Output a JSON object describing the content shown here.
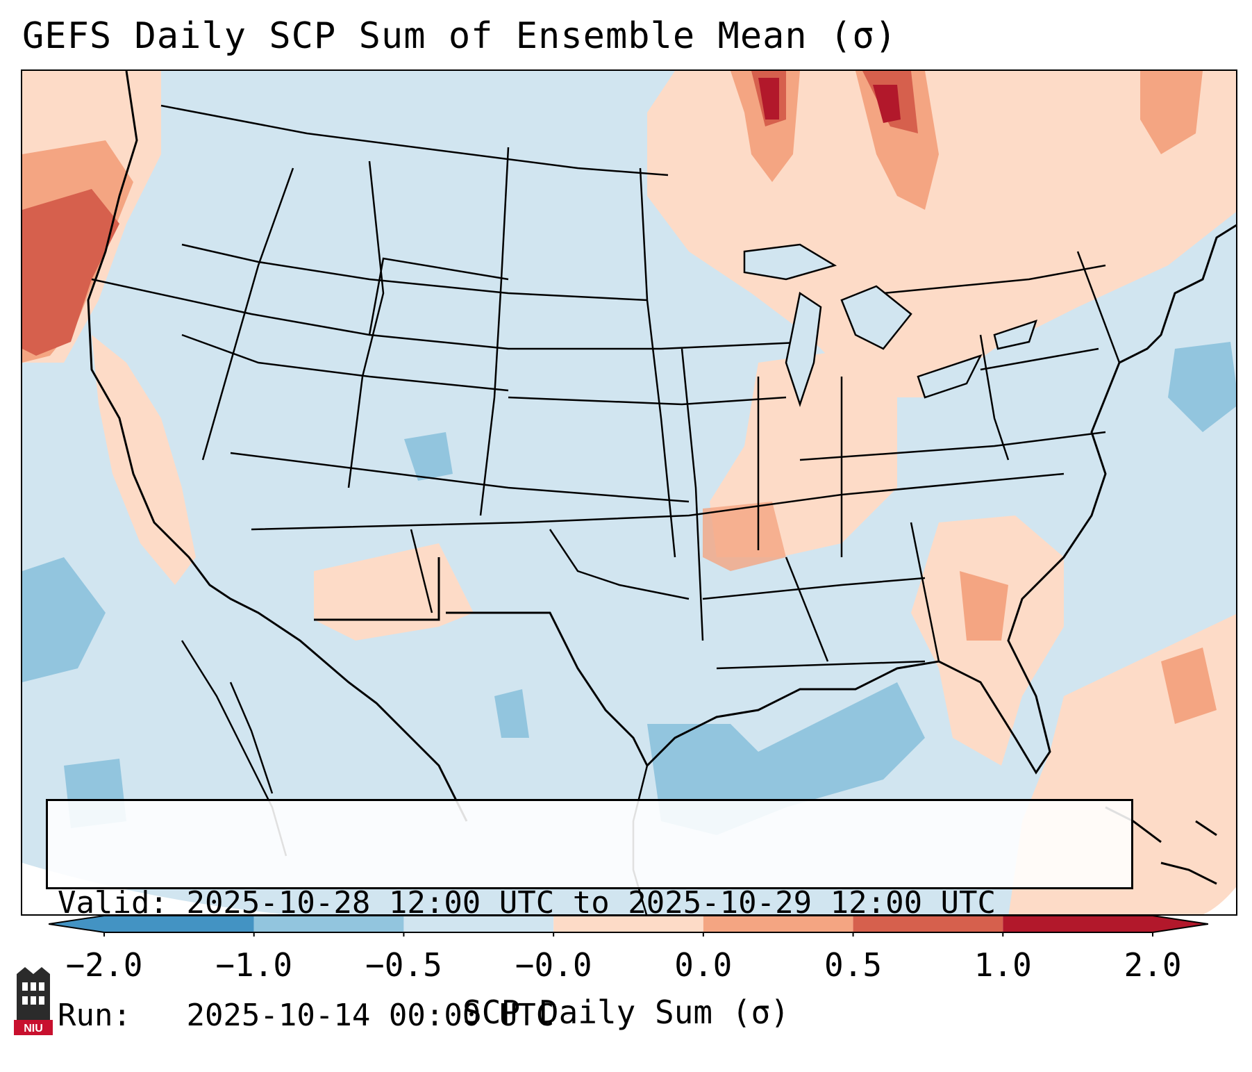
{
  "title": "GEFS Daily SCP Sum of Ensemble Mean (σ)",
  "info": {
    "valid_label": "Valid:",
    "valid_value": "2025-10-28 12:00 UTC to 2025-10-29 12:00 UTC",
    "run_label": "Run:",
    "run_value": "2025-10-14 00:00 UTC"
  },
  "colorbar": {
    "label": "SCP Daily Sum (σ)",
    "ticks": [
      "−2.0",
      "−1.0",
      "−0.5",
      "−0.0",
      "0.0",
      "0.5",
      "1.0",
      "2.0"
    ],
    "colors": [
      "#4393c3",
      "#92c5de",
      "#d1e5f0",
      "#f7f7f7",
      "#fddbc7",
      "#f4a582",
      "#d6604d",
      "#b2182b"
    ]
  },
  "logo": {
    "name": "NIU",
    "colors": {
      "red": "#c8102e",
      "dark": "#2b2b2b"
    }
  },
  "map": {
    "ocean_color": "#d1e5f0",
    "light_red": "#fddbc7",
    "mid_red": "#f4a582",
    "strong_red": "#d6604d",
    "darkest_red": "#b2182b",
    "light_blue": "#92c5de"
  }
}
